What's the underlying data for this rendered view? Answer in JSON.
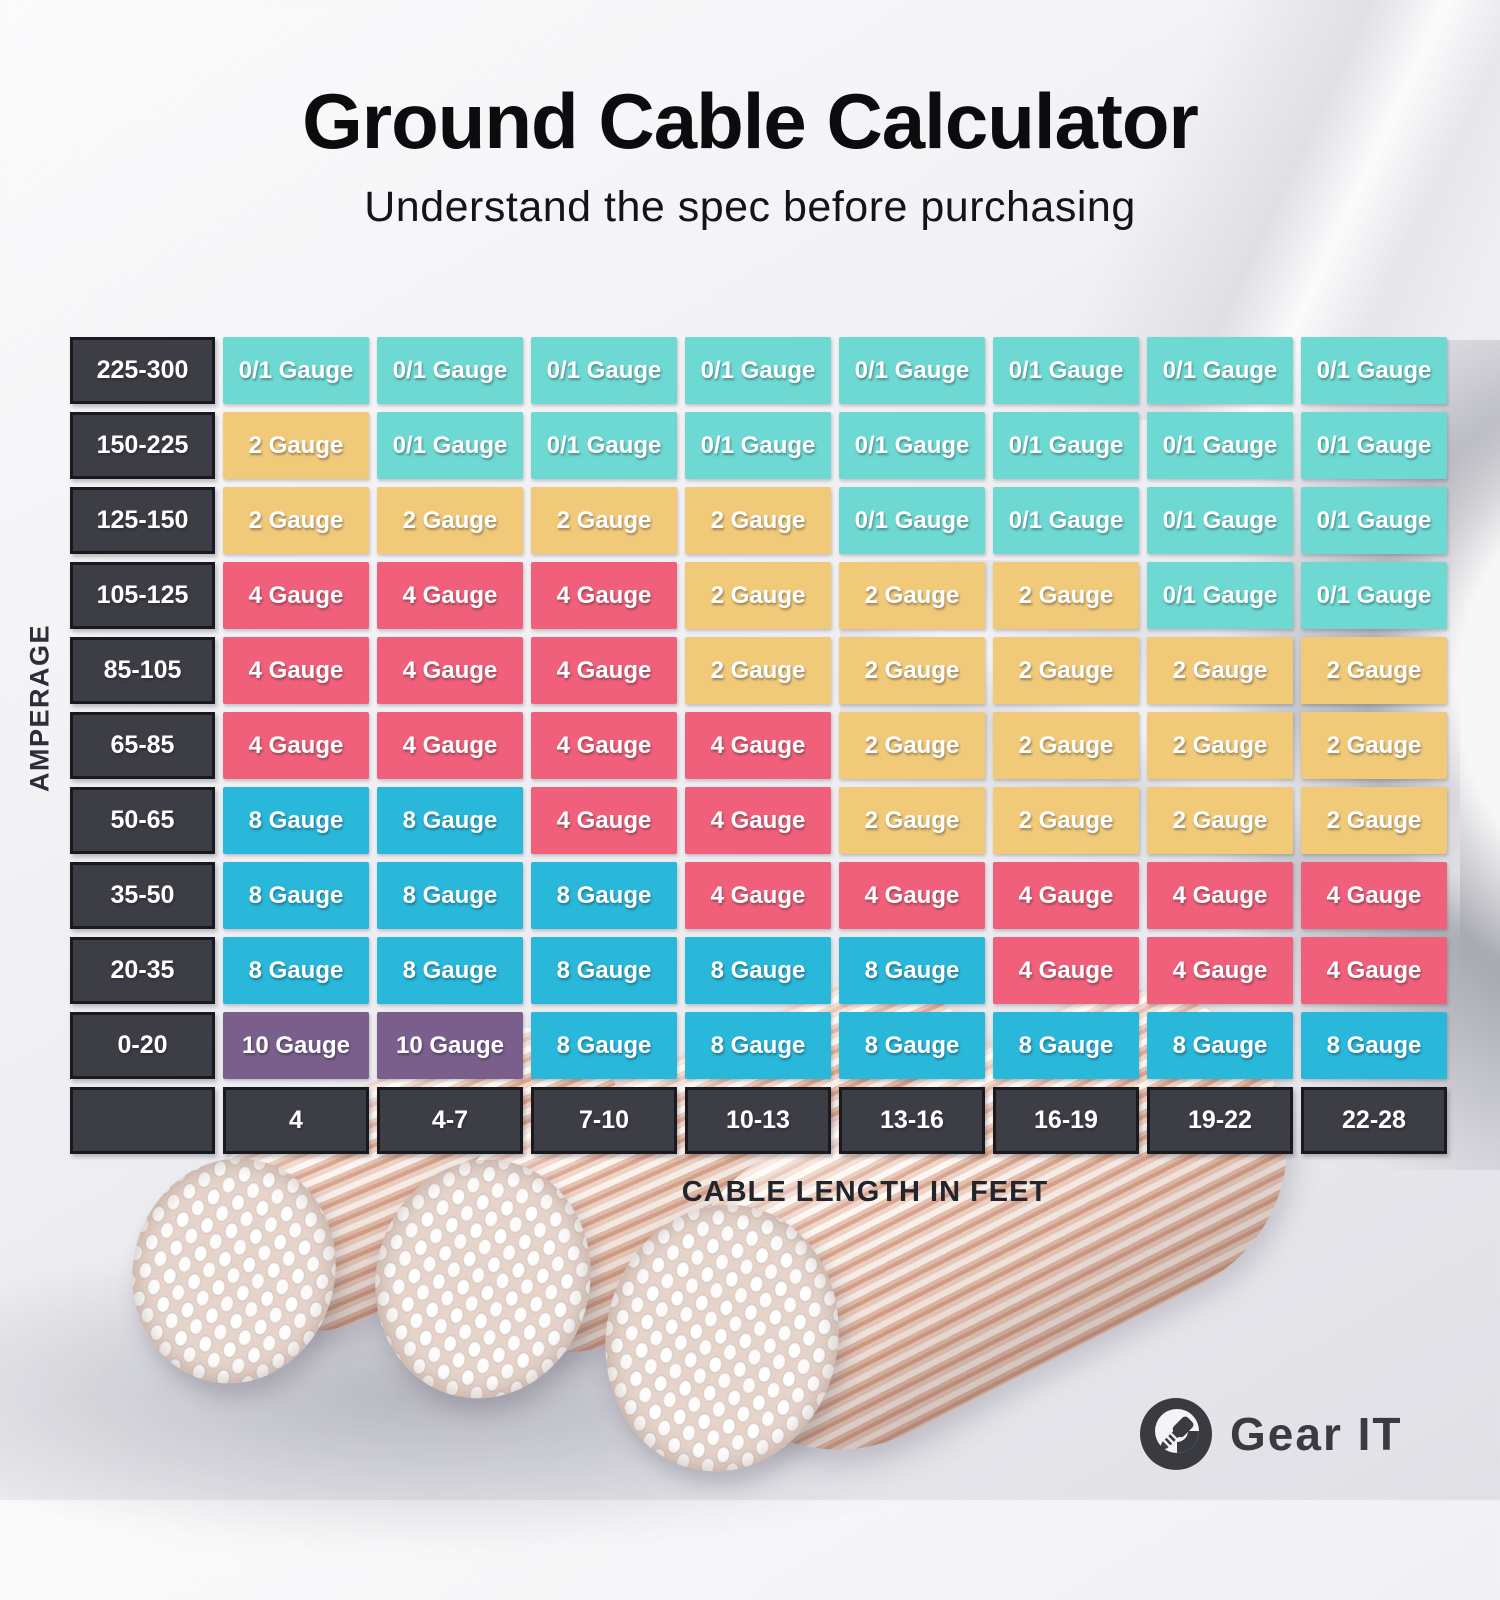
{
  "page": {
    "title": "Ground Cable Calculator",
    "subtitle": "Understand the spec before purchasing"
  },
  "brand": {
    "name": "Gear IT",
    "icon": "gearit-g-jack-icon"
  },
  "chart_data": {
    "type": "table",
    "title": "Ground Cable Calculator",
    "x_axis_label": "CABLE LENGTH IN FEET",
    "y_axis_label": "AMPERAGE",
    "columns": [
      "4",
      "4-7",
      "7-10",
      "10-13",
      "13-16",
      "16-19",
      "19-22",
      "22-28"
    ],
    "rows": [
      {
        "amperage": "225-300",
        "cells": [
          "0/1 Gauge",
          "0/1 Gauge",
          "0/1 Gauge",
          "0/1 Gauge",
          "0/1 Gauge",
          "0/1 Gauge",
          "0/1 Gauge",
          "0/1 Gauge"
        ]
      },
      {
        "amperage": "150-225",
        "cells": [
          "2 Gauge",
          "0/1 Gauge",
          "0/1 Gauge",
          "0/1 Gauge",
          "0/1 Gauge",
          "0/1 Gauge",
          "0/1 Gauge",
          "0/1 Gauge"
        ]
      },
      {
        "amperage": "125-150",
        "cells": [
          "2 Gauge",
          "2 Gauge",
          "2 Gauge",
          "2 Gauge",
          "0/1 Gauge",
          "0/1 Gauge",
          "0/1 Gauge",
          "0/1 Gauge"
        ]
      },
      {
        "amperage": "105-125",
        "cells": [
          "4 Gauge",
          "4 Gauge",
          "4 Gauge",
          "2 Gauge",
          "2 Gauge",
          "2 Gauge",
          "0/1 Gauge",
          "0/1 Gauge"
        ]
      },
      {
        "amperage": "85-105",
        "cells": [
          "4 Gauge",
          "4 Gauge",
          "4 Gauge",
          "2 Gauge",
          "2 Gauge",
          "2 Gauge",
          "2 Gauge",
          "2 Gauge"
        ]
      },
      {
        "amperage": "65-85",
        "cells": [
          "4 Gauge",
          "4 Gauge",
          "4 Gauge",
          "4 Gauge",
          "2 Gauge",
          "2 Gauge",
          "2 Gauge",
          "2 Gauge"
        ]
      },
      {
        "amperage": "50-65",
        "cells": [
          "8 Gauge",
          "8 Gauge",
          "4 Gauge",
          "4 Gauge",
          "2 Gauge",
          "2 Gauge",
          "2 Gauge",
          "2 Gauge"
        ]
      },
      {
        "amperage": "35-50",
        "cells": [
          "8 Gauge",
          "8 Gauge",
          "8 Gauge",
          "4 Gauge",
          "4 Gauge",
          "4 Gauge",
          "4 Gauge",
          "4 Gauge"
        ]
      },
      {
        "amperage": "20-35",
        "cells": [
          "8 Gauge",
          "8 Gauge",
          "8 Gauge",
          "8 Gauge",
          "8 Gauge",
          "4 Gauge",
          "4 Gauge",
          "4 Gauge"
        ]
      },
      {
        "amperage": "0-20",
        "cells": [
          "10 Gauge",
          "10 Gauge",
          "8 Gauge",
          "8 Gauge",
          "8 Gauge",
          "8 Gauge",
          "8 Gauge",
          "8 Gauge"
        ]
      }
    ],
    "cell_colors": {
      "0/1 Gauge": "#6DD9D2",
      "2 Gauge": "#F0C979",
      "4 Gauge": "#F0607A",
      "8 Gauge": "#29B7DA",
      "10 Gauge": "#7A5F8C"
    },
    "header_color": "#3D3D45",
    "legend_position": "none",
    "grid": false
  }
}
